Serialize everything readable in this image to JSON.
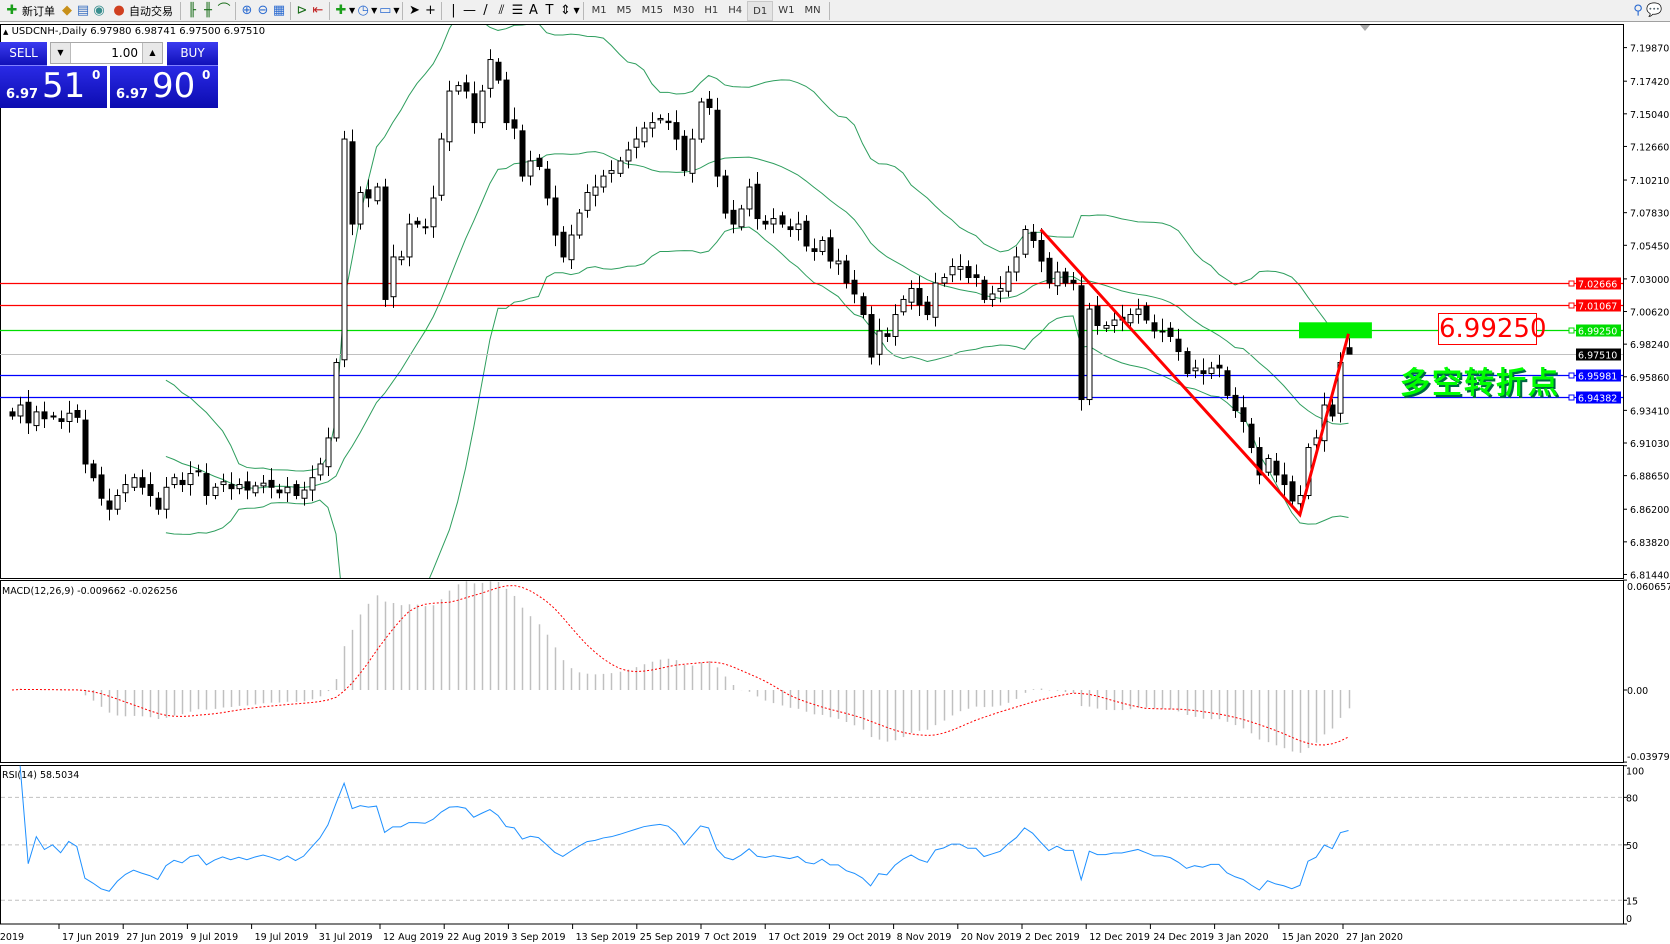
{
  "toolbar": {
    "new_order": "新订单",
    "auto_trading": "自动交易",
    "icons": [
      "new-order-icon",
      "experts-icon",
      "history-icon",
      "signal-icon",
      "auto-trading-icon",
      "bar-chart-icon",
      "candlestick-icon",
      "line-chart-icon",
      "zoom-in-icon",
      "zoom-out-icon",
      "tile-icon",
      "auto-scroll-icon",
      "chart-shift-icon",
      "indicators-icon",
      "periods-icon",
      "templates-icon",
      "cursor-icon",
      "crosshair-icon",
      "vertical-line-icon",
      "horizontal-line-icon",
      "trendline-icon",
      "fibonacci-icon",
      "fibo-fan-icon",
      "text-icon",
      "text-label-icon",
      "arrows-icon"
    ],
    "timeframes": [
      "M1",
      "M5",
      "M15",
      "M30",
      "H1",
      "H4",
      "D1",
      "W1",
      "MN"
    ],
    "active_timeframe": "D1"
  },
  "chart": {
    "symbol_line": "USDCNH-,Daily  6.97980 6.98741 6.97500 6.97510"
  },
  "trade_panel": {
    "sell_label": "SELL",
    "buy_label": "BUY",
    "lot": "1.00",
    "sell_prefix": "6.97",
    "sell_big": "51",
    "sell_sup": "0",
    "buy_prefix": "6.97",
    "buy_big": "90",
    "buy_sup": "0"
  },
  "annotations": {
    "level_label": "6.99250",
    "turning_point_text": "多空转折点"
  },
  "chart_data": [
    {
      "type": "candlestick",
      "title": "USDCNH-,Daily",
      "ohlc_last": {
        "open": 6.9798,
        "high": 6.98741,
        "low": 6.975,
        "close": 6.9751
      },
      "ylim": [
        6.8144,
        7.205
      ],
      "y_ticks": [
        "7.19870",
        "7.17420",
        "7.15040",
        "7.12660",
        "7.10210",
        "7.07830",
        "7.05450",
        "7.03000",
        "7.00620",
        "6.98240",
        "6.95860",
        "6.93410",
        "6.91030",
        "6.88650",
        "6.86200",
        "6.83820",
        "6.81440"
      ],
      "x_labels": [
        "Jun 2019",
        "17 Jun 2019",
        "27 Jun 2019",
        "9 Jul 2019",
        "19 Jul 2019",
        "31 Jul 2019",
        "12 Aug 2019",
        "22 Aug 2019",
        "3 Sep 2019",
        "13 Sep 2019",
        "25 Sep 2019",
        "7 Oct 2019",
        "17 Oct 2019",
        "29 Oct 2019",
        "8 Nov 2019",
        "20 Nov 2019",
        "2 Dec 2019",
        "12 Dec 2019",
        "24 Dec 2019",
        "3 Jan 2020",
        "15 Jan 2020",
        "27 Jan 2020"
      ],
      "closes": [
        6.93,
        6.938,
        6.925,
        6.933,
        6.928,
        6.93,
        6.926,
        6.932,
        6.929,
        6.895,
        6.885,
        6.87,
        6.862,
        6.872,
        6.88,
        6.885,
        6.878,
        6.872,
        6.862,
        6.878,
        6.885,
        6.88,
        6.888,
        6.89,
        6.872,
        6.878,
        6.882,
        6.877,
        6.88,
        6.876,
        6.879,
        6.881,
        6.878,
        6.874,
        6.878,
        6.872,
        6.876,
        6.885,
        6.895,
        6.914,
        6.969,
        7.132,
        7.07,
        7.093,
        7.089,
        7.097,
        7.015,
        7.046,
        7.046,
        7.07,
        7.07,
        7.068,
        7.089,
        7.132,
        7.167,
        7.171,
        7.167,
        7.144,
        7.167,
        7.19,
        7.175,
        7.144,
        7.14,
        7.105,
        7.116,
        7.112,
        7.089,
        7.062,
        7.046,
        7.062,
        7.078,
        7.093,
        7.097,
        7.105,
        7.109,
        7.116,
        7.124,
        7.132,
        7.14,
        7.144,
        7.147,
        7.144,
        7.132,
        7.109,
        7.132,
        7.159,
        7.155,
        7.105,
        7.078,
        7.07,
        7.081,
        7.097,
        7.074,
        7.07,
        7.074,
        7.07,
        7.066,
        7.07,
        7.054,
        7.05,
        7.058,
        7.043,
        7.043,
        7.027,
        7.019,
        7.004,
        6.973,
        6.992,
        6.988,
        7.004,
        7.015,
        7.023,
        7.011,
        7.004,
        7.027,
        7.031,
        7.039,
        7.039,
        7.031,
        7.031,
        7.015,
        7.019,
        7.023,
        7.035,
        7.046,
        7.066,
        7.058,
        7.043,
        7.027,
        7.035,
        7.027,
        7.027,
        6.942,
        7.008,
        6.996,
        6.996,
        7.0,
        7.0,
        7.004,
        7.008,
        7.0,
        6.992,
        6.992,
        6.988,
        6.977,
        6.961,
        6.965,
        6.961,
        6.965,
        6.965,
        6.945,
        6.934,
        6.926,
        6.907,
        6.887,
        6.899,
        6.887,
        6.88,
        6.868,
        6.872,
        6.907,
        6.914,
        6.938,
        6.93,
        6.969,
        6.9751
      ],
      "indicators": {
        "bollinger_bands": {
          "period": 20,
          "deviation": 2,
          "color": "#2e9e5e"
        }
      },
      "horizontal_lines": [
        {
          "price": "7.02666",
          "color": "#ff0000"
        },
        {
          "price": "7.01067",
          "color": "#ff0000"
        },
        {
          "price": "6.99250",
          "color": "#00dd00"
        },
        {
          "price": "6.95981",
          "color": "#0000ff"
        },
        {
          "price": "6.94382",
          "color": "#0000ff"
        }
      ],
      "bid_line": {
        "price": "6.97510",
        "color": "#c0c0c0"
      },
      "trendline": {
        "color": "#ff0000",
        "points": [
          [
            127,
            7.066
          ],
          [
            159,
            6.858
          ],
          [
            165,
            6.99
          ]
        ]
      },
      "highlight_zone": {
        "price": 6.9925,
        "color": "#00ee00",
        "bars": [
          160,
          169
        ]
      }
    },
    {
      "type": "bar",
      "title": "MACD(12,26,9) -0.009662 -0.026256",
      "ylim": [
        -0.039792,
        0.060657
      ],
      "y_ticks": [
        "0.060657",
        "0.00",
        "-0.039792"
      ],
      "main_color": "#c0c0c0",
      "signal_color": "#ff0000"
    },
    {
      "type": "line",
      "title": "RSI(14) 58.5034",
      "ylim": [
        0,
        100
      ],
      "y_ticks": [
        "100",
        "80",
        "50",
        "15",
        "0"
      ],
      "levels": [
        80,
        50,
        15
      ],
      "color": "#1e90ff"
    }
  ]
}
